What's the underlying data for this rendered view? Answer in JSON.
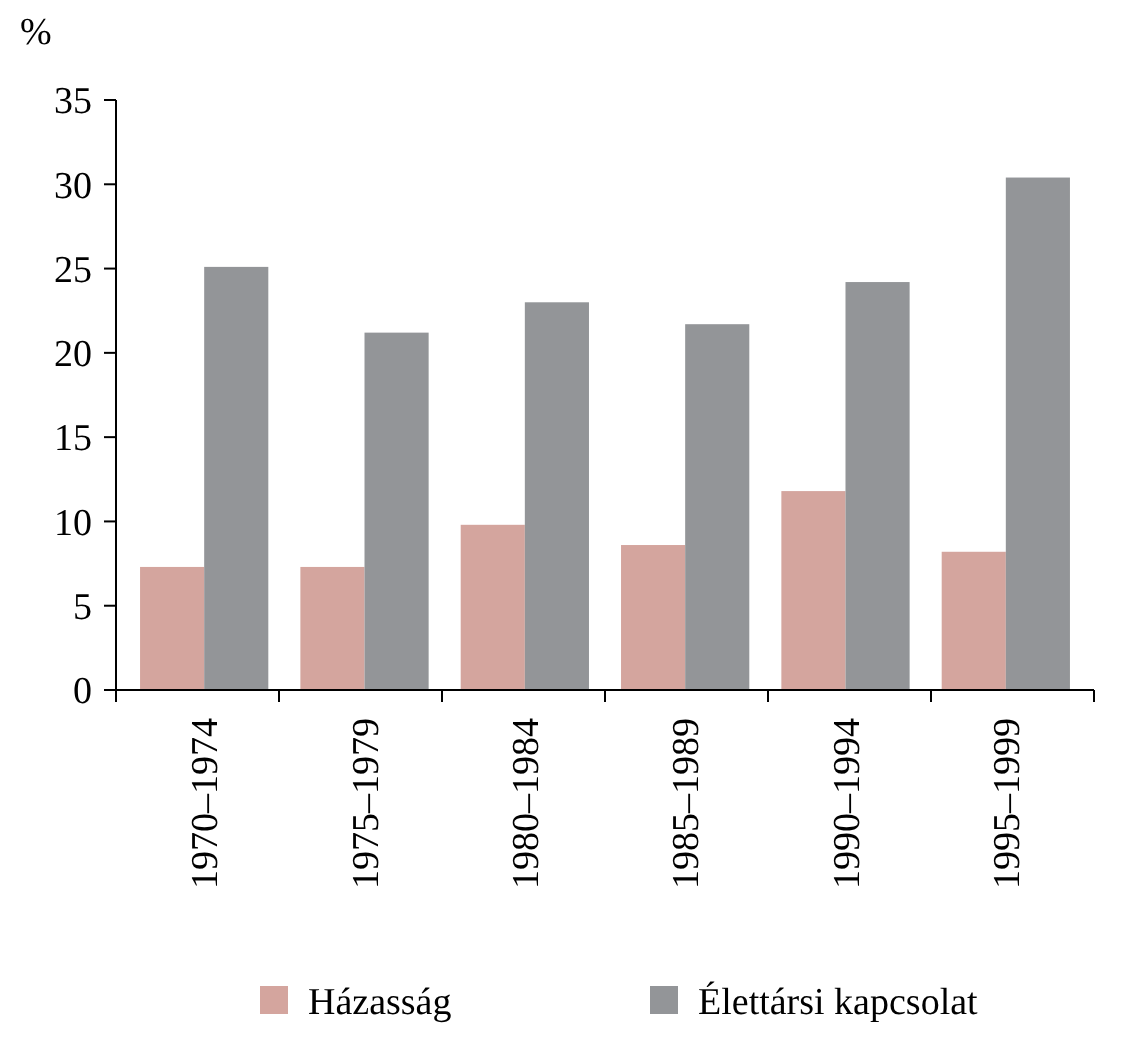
{
  "chart_data": {
    "type": "bar",
    "ylabel": "%",
    "categories": [
      "1970–1974",
      "1975–1979",
      "1980–1984",
      "1985–1989",
      "1990–1994",
      "1995–1999"
    ],
    "series": [
      {
        "name": "Házasság",
        "color": "#d4a59e",
        "values": [
          7.3,
          7.3,
          9.8,
          8.6,
          11.8,
          8.2
        ]
      },
      {
        "name": "Élettársi kapcsolat",
        "color": "#939598",
        "values": [
          25.1,
          21.2,
          23.0,
          21.7,
          24.2,
          30.4
        ]
      }
    ],
    "ylim": [
      0,
      35
    ],
    "yticks": [
      0,
      5,
      10,
      15,
      20,
      25,
      30,
      35
    ],
    "grid": false,
    "legend": "bottom"
  }
}
